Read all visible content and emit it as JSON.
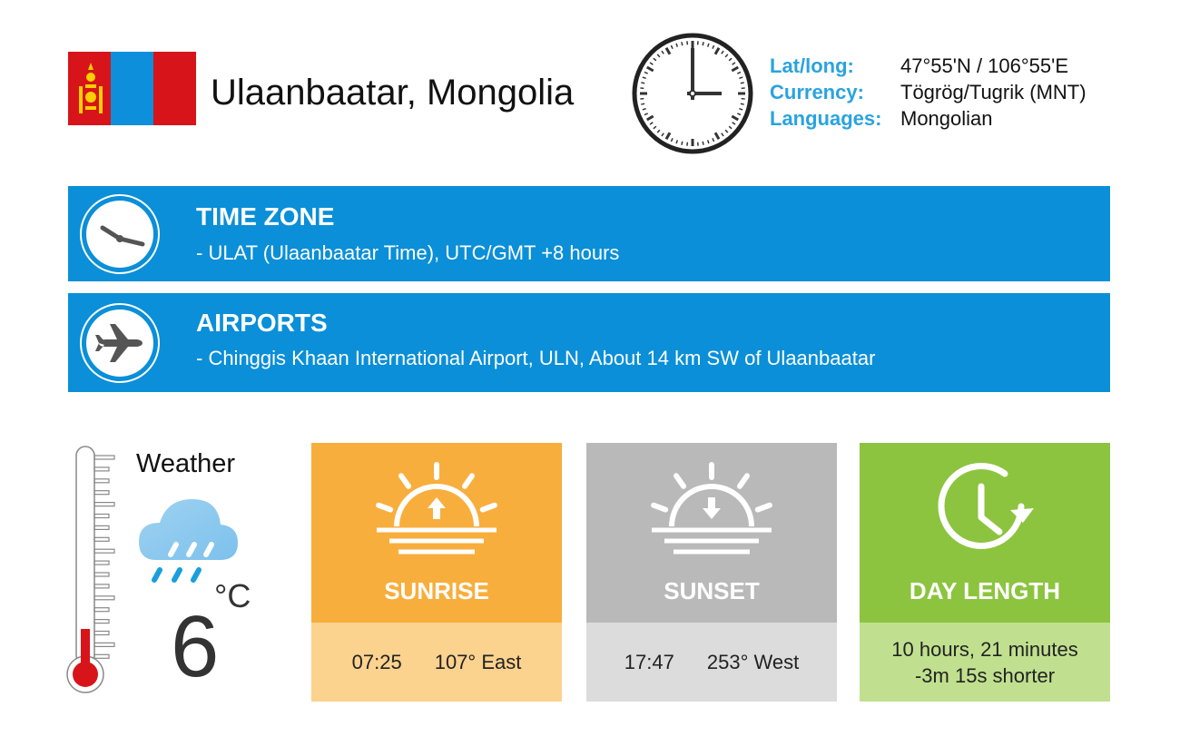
{
  "header": {
    "city": "Ulaanbaatar, Mongolia",
    "flag_icon": "mongolia-flag"
  },
  "info": [
    {
      "label": "Lat/long:",
      "value": "47°55'N / 106°55'E"
    },
    {
      "label": "Currency:",
      "value": "Tögrög/Tugrik (MNT)"
    },
    {
      "label": "Languages:",
      "value": "Mongolian"
    }
  ],
  "timezone": {
    "title": "TIME ZONE",
    "detail": "- ULAT (Ulaanbaatar Time), UTC/GMT +8 hours",
    "icon": "clock-icon"
  },
  "airports": {
    "title": "AIRPORTS",
    "detail": "- Chinggis Khaan International Airport, ULN, About 14 km SW of Ulaanbaatar",
    "icon": "airplane-icon"
  },
  "weather": {
    "label": "Weather",
    "unit": "°C",
    "temperature": "6",
    "icon": "rain-cloud-icon"
  },
  "sunrise": {
    "label": "SUNRISE",
    "time": "07:25",
    "direction": "107° East"
  },
  "sunset": {
    "label": "SUNSET",
    "time": "17:47",
    "direction": "253° West"
  },
  "day_length": {
    "label": "DAY LENGTH",
    "length": "10 hours, 21 minutes",
    "change": "-3m 15s shorter"
  },
  "colors": {
    "blue": "#0a8fd8",
    "accent_label": "#2aa3df",
    "sunrise": "#f8ae3c",
    "sunrise_light": "#fbd28e",
    "sunset": "#b9b9b9",
    "sunset_light": "#dcdcdc",
    "day": "#8cc43f",
    "day_light": "#c1e08f",
    "flag_red": "#d7141a",
    "flag_blue": "#0e8fdc",
    "flag_yellow": "#f9cf02"
  }
}
